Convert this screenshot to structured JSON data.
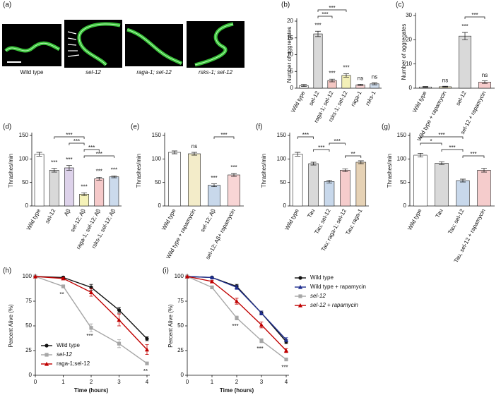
{
  "panel_a": {
    "label": "(a)",
    "captions": [
      "Wild type",
      "sel-12",
      "raga-1; sel-12",
      "rsks-1; sel-12"
    ]
  },
  "chart_data": [
    {
      "type": "bar",
      "label": "(b)",
      "ylabel": "Number of aggregates",
      "categories": [
        "Wild type",
        "sel-12",
        "raga-1; sel-12",
        "rsks-1; sel-12",
        "raga-1",
        "rsks-1"
      ],
      "values": [
        0.8,
        16.2,
        2.3,
        3.8,
        1.0,
        1.3
      ],
      "errors": [
        0.3,
        0.8,
        0.4,
        0.5,
        0.2,
        0.3
      ],
      "colors": [
        "#ffffff",
        "#d9d9d9",
        "#f4c7c3",
        "#f3f0b8",
        "#f6d3d3",
        "#cfdcec"
      ],
      "significance": [
        null,
        "***",
        "***",
        "***",
        "ns",
        "ns"
      ],
      "brackets": [
        {
          "from": 1,
          "to": 3,
          "text": "***"
        },
        {
          "from": 1,
          "to": 2,
          "text": "***"
        }
      ],
      "ylim": [
        0,
        20
      ],
      "yticks": [
        0,
        5,
        10,
        15,
        20
      ]
    },
    {
      "type": "bar",
      "label": "(c)",
      "ylabel": "Number of aggregates",
      "categories": [
        "Wild type",
        "Wild type + rapamycin",
        "sel-12",
        "sel-12 + rapamycin"
      ],
      "values": [
        0.5,
        0.6,
        21.5,
        2.5
      ],
      "errors": [
        0.2,
        0.2,
        1.5,
        0.5
      ],
      "colors": [
        "#ffffff",
        "#f3ecc9",
        "#d9d9d9",
        "#f6cccc"
      ],
      "significance": [
        null,
        "ns",
        "***",
        "ns"
      ],
      "brackets": [
        {
          "from": 2,
          "to": 3,
          "text": "***"
        }
      ],
      "ylim": [
        0,
        30
      ],
      "yticks": [
        0,
        10,
        20,
        30
      ]
    },
    {
      "type": "bar",
      "label": "(d)",
      "ylabel": "Thrashes/min",
      "categories": [
        "Wild type",
        "sel-12",
        "Aβ",
        "sel-12; Aβ",
        "raga-1; sel-12; Aβ",
        "rsks-1; sel-12; Aβ"
      ],
      "values": [
        110,
        76,
        81,
        25,
        58,
        62
      ],
      "errors": [
        4,
        4,
        5,
        3,
        3,
        2
      ],
      "colors": [
        "#ffffff",
        "#d9d9d9",
        "#ddd2ea",
        "#f5f2b8",
        "#f5c9c9",
        "#cbdaec"
      ],
      "significance": [
        null,
        "***",
        "***",
        "***",
        "***",
        "***"
      ],
      "brackets": [
        {
          "from": 1,
          "to": 3,
          "text": "***"
        },
        {
          "from": 2,
          "to": 3,
          "text": "***"
        },
        {
          "from": 3,
          "to": 4,
          "text": "***"
        },
        {
          "from": 3,
          "to": 5,
          "text": "***"
        }
      ],
      "ylim": [
        0,
        150
      ],
      "yticks": [
        0,
        50,
        100,
        150
      ]
    },
    {
      "type": "bar",
      "label": "(e)",
      "ylabel": "Thrashes/min",
      "categories": [
        "Wild type",
        "Wild type + rapamycin",
        "sel-12; Aβ",
        "sel-12; Aβ+ rapamycin"
      ],
      "values": [
        114,
        111,
        44,
        66
      ],
      "errors": [
        3,
        3,
        3,
        3
      ],
      "colors": [
        "#ffffff",
        "#f3ecc9",
        "#c8d8eb",
        "#f8d5d5"
      ],
      "significance": [
        null,
        "ns",
        "***",
        "***"
      ],
      "brackets": [
        {
          "from": 2,
          "to": 3,
          "text": "***"
        }
      ],
      "ylim": [
        0,
        150
      ],
      "yticks": [
        0,
        50,
        100,
        150
      ]
    },
    {
      "type": "bar",
      "label": "(f)",
      "ylabel": "Thrashes/min",
      "categories": [
        "Wild type",
        "Tau",
        "Tau; sel-12",
        "Tau; raga-1; sel-12",
        "Tau; raga-1"
      ],
      "values": [
        110,
        90,
        52,
        76,
        93
      ],
      "errors": [
        4,
        3,
        3,
        3,
        3
      ],
      "colors": [
        "#ffffff",
        "#d9d9d9",
        "#c8d8eb",
        "#f5cccc",
        "#e6d2b5"
      ],
      "significance": [
        null,
        null,
        null,
        null,
        null
      ],
      "brackets": [
        {
          "from": 0,
          "to": 1,
          "text": "***"
        },
        {
          "from": 2,
          "to": 3,
          "text": "***"
        },
        {
          "from": 1,
          "to": 2,
          "text": "***"
        },
        {
          "from": 3,
          "to": 4,
          "text": "**"
        }
      ],
      "ylim": [
        0,
        150
      ],
      "yticks": [
        0,
        50,
        100,
        150
      ]
    },
    {
      "type": "bar",
      "label": "(g)",
      "ylabel": "Thrashes/min",
      "categories": [
        "Wild type",
        "Tau",
        "Tau; sel-12",
        "Tau, sel-12 + rapamycin"
      ],
      "values": [
        108,
        91,
        54,
        76
      ],
      "errors": [
        4,
        3,
        3,
        4
      ],
      "colors": [
        "#ffffff",
        "#d9d9d9",
        "#c8d8eb",
        "#f5cccc"
      ],
      "significance": [
        null,
        null,
        null,
        null
      ],
      "brackets": [
        {
          "from": 0,
          "to": 2,
          "text": "***"
        },
        {
          "from": 0,
          "to": 1,
          "text": "*"
        },
        {
          "from": 1,
          "to": 2,
          "text": "***"
        },
        {
          "from": 2,
          "to": 3,
          "text": "***"
        }
      ],
      "ylim": [
        0,
        150
      ],
      "yticks": [
        0,
        50,
        100,
        150
      ]
    },
    {
      "type": "line",
      "label": "(h)",
      "xlabel": "Time (hours)",
      "ylabel": "Percent Alive (%)",
      "x": [
        0,
        1,
        2,
        3,
        4
      ],
      "xlim": [
        0,
        4
      ],
      "xticks": [
        0,
        1,
        2,
        3,
        4
      ],
      "ylim": [
        0,
        100
      ],
      "yticks": [
        0,
        25,
        50,
        75,
        100
      ],
      "legend": "lower left",
      "series": [
        {
          "name": "Wild type",
          "color": "#111111",
          "marker": "circle",
          "values": [
            100,
            99,
            89,
            66,
            37
          ],
          "errors": [
            0,
            1,
            3,
            3,
            2
          ]
        },
        {
          "name": "sel-12",
          "color": "#a6a6a6",
          "marker": "square",
          "values": [
            100,
            90,
            48,
            32,
            12
          ],
          "errors": [
            0,
            1,
            4,
            4,
            1
          ]
        },
        {
          "name": "raga-1;sel-12",
          "color": "#c00000",
          "marker": "triangle",
          "values": [
            100,
            98,
            84,
            56,
            26
          ],
          "errors": [
            0,
            1,
            4,
            6,
            5
          ]
        }
      ],
      "annotations": [
        {
          "x": 1,
          "text": "**"
        },
        {
          "x": 2,
          "text": "***"
        },
        {
          "x": 4,
          "text": "**"
        }
      ]
    },
    {
      "type": "line",
      "label": "(i)",
      "xlabel": "Time (hours)",
      "ylabel": "Percent Alive (%)",
      "x": [
        0,
        1,
        2,
        3,
        4
      ],
      "xlim": [
        0,
        4
      ],
      "xticks": [
        0,
        1,
        2,
        3,
        4
      ],
      "ylim": [
        0,
        100
      ],
      "yticks": [
        0,
        25,
        50,
        75,
        100
      ],
      "legend": "outside right",
      "series": [
        {
          "name": "Wild type",
          "color": "#111111",
          "marker": "circle",
          "values": [
            100,
            99,
            90,
            63,
            34
          ],
          "errors": [
            0,
            1,
            2,
            2,
            2
          ]
        },
        {
          "name": "Wild type + rapamycin",
          "color": "#1f2f8f",
          "marker": "triangle",
          "values": [
            100,
            99,
            89,
            63,
            36
          ],
          "errors": [
            0,
            1,
            2,
            2,
            2
          ]
        },
        {
          "name": "sel-12",
          "color": "#a6a6a6",
          "marker": "square",
          "values": [
            100,
            89,
            58,
            35,
            16
          ],
          "errors": [
            0,
            1,
            2,
            2,
            1
          ]
        },
        {
          "name": "sel-12 + rapamycin",
          "color": "#c00000",
          "marker": "triangle",
          "values": [
            100,
            95,
            75,
            51,
            25
          ],
          "errors": [
            0,
            1,
            3,
            3,
            2
          ]
        }
      ],
      "annotations": [
        {
          "x": 2,
          "text": "***"
        },
        {
          "x": 3,
          "text": "***"
        },
        {
          "x": 4,
          "text": "***"
        }
      ]
    }
  ]
}
